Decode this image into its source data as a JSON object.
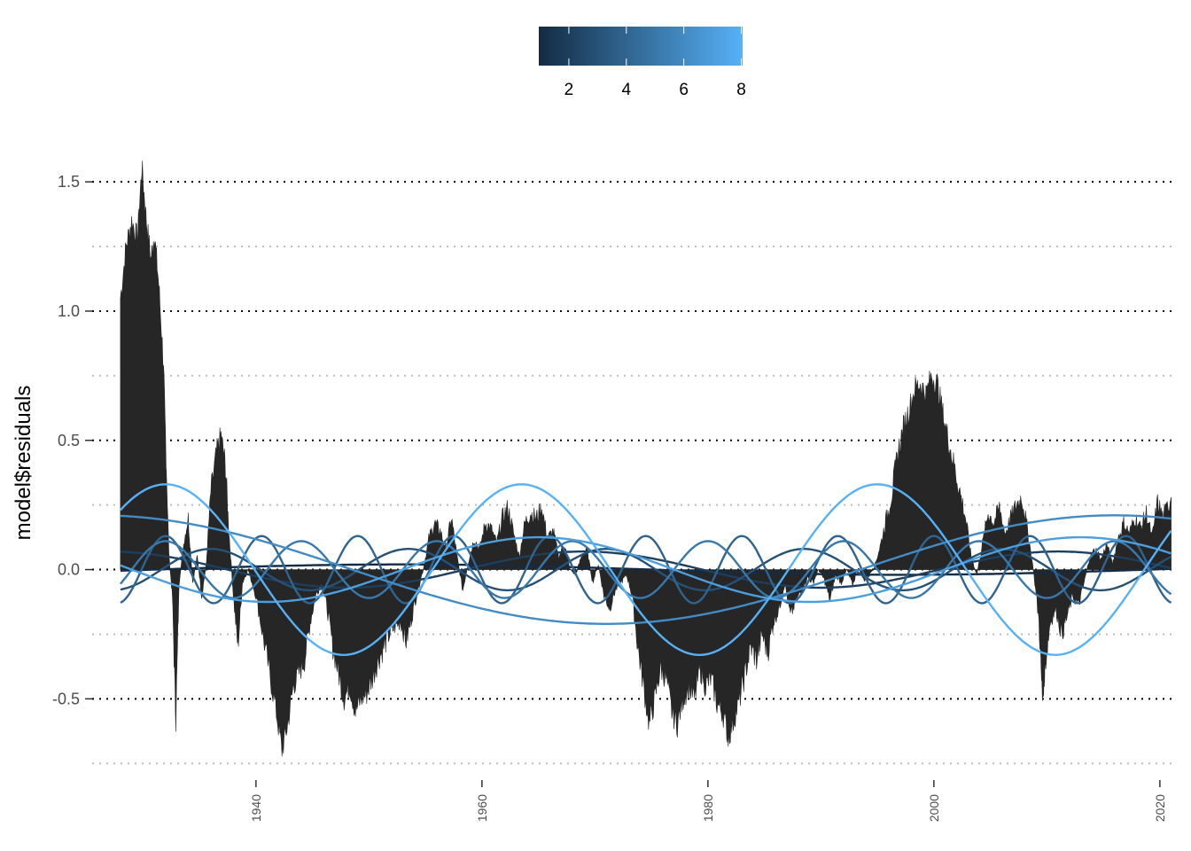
{
  "chart_data": {
    "type": "area",
    "ylabel": "model$residuals",
    "xlabel": "",
    "xlim": [
      1925.5,
      2021.5
    ],
    "ylim": [
      -0.78,
      1.6
    ],
    "x_ticks": [
      1940,
      1960,
      1980,
      2000,
      2020
    ],
    "y_ticks": [
      -0.5,
      0.0,
      0.5,
      1.0,
      1.5
    ],
    "y_minor_gridlines": [
      -0.75,
      -0.25,
      0.25,
      0.75,
      1.25
    ],
    "grid": true,
    "gridline_style": "dotted",
    "legend": {
      "position": "top",
      "type": "colorbar",
      "min": 1,
      "max": 8,
      "ticks": [
        2,
        4,
        6,
        8
      ],
      "color_low": "#132B43",
      "color_high": "#56B1F7"
    },
    "residuals_area": {
      "color": "#262626",
      "points": [
        [
          1928.0,
          1.05
        ],
        [
          1928.5,
          1.25
        ],
        [
          1929.0,
          1.35
        ],
        [
          1929.5,
          1.28
        ],
        [
          1929.9,
          1.56
        ],
        [
          1930.3,
          1.35
        ],
        [
          1930.7,
          1.2
        ],
        [
          1931.0,
          1.3
        ],
        [
          1931.4,
          1.1
        ],
        [
          1931.8,
          0.8
        ],
        [
          1932.0,
          0.5
        ],
        [
          1932.3,
          0.05
        ],
        [
          1932.6,
          -0.1
        ],
        [
          1932.9,
          -0.58
        ],
        [
          1933.2,
          -0.05
        ],
        [
          1933.6,
          0.1
        ],
        [
          1934.0,
          0.2
        ],
        [
          1934.4,
          -0.05
        ],
        [
          1934.8,
          0.05
        ],
        [
          1935.2,
          -0.1
        ],
        [
          1935.6,
          0.02
        ],
        [
          1936.0,
          0.3
        ],
        [
          1936.5,
          0.45
        ],
        [
          1936.9,
          0.52
        ],
        [
          1937.3,
          0.4
        ],
        [
          1937.6,
          0.15
        ],
        [
          1938.0,
          -0.1
        ],
        [
          1938.4,
          -0.3
        ],
        [
          1938.8,
          -0.05
        ],
        [
          1939.3,
          0.0
        ],
        [
          1940.0,
          -0.1
        ],
        [
          1940.6,
          -0.25
        ],
        [
          1941.2,
          -0.4
        ],
        [
          1941.8,
          -0.55
        ],
        [
          1942.3,
          -0.7
        ],
        [
          1942.8,
          -0.6
        ],
        [
          1943.3,
          -0.45
        ],
        [
          1943.8,
          -0.4
        ],
        [
          1944.3,
          -0.35
        ],
        [
          1944.8,
          -0.2
        ],
        [
          1945.3,
          -0.1
        ],
        [
          1945.8,
          -0.05
        ],
        [
          1946.3,
          -0.15
        ],
        [
          1946.8,
          -0.3
        ],
        [
          1947.3,
          -0.4
        ],
        [
          1947.8,
          -0.5
        ],
        [
          1948.3,
          -0.45
        ],
        [
          1948.8,
          -0.55
        ],
        [
          1949.3,
          -0.5
        ],
        [
          1949.8,
          -0.48
        ],
        [
          1950.3,
          -0.42
        ],
        [
          1950.8,
          -0.35
        ],
        [
          1951.3,
          -0.3
        ],
        [
          1951.8,
          -0.25
        ],
        [
          1952.3,
          -0.22
        ],
        [
          1952.8,
          -0.2
        ],
        [
          1953.3,
          -0.28
        ],
        [
          1953.8,
          -0.18
        ],
        [
          1954.3,
          -0.08
        ],
        [
          1954.8,
          0.0
        ],
        [
          1955.3,
          0.12
        ],
        [
          1955.8,
          0.18
        ],
        [
          1956.3,
          0.15
        ],
        [
          1956.8,
          0.08
        ],
        [
          1957.3,
          0.2
        ],
        [
          1957.8,
          0.05
        ],
        [
          1958.3,
          -0.08
        ],
        [
          1958.8,
          0.03
        ],
        [
          1959.3,
          0.12
        ],
        [
          1959.8,
          0.08
        ],
        [
          1960.3,
          0.18
        ],
        [
          1960.8,
          0.16
        ],
        [
          1961.3,
          0.1
        ],
        [
          1961.8,
          0.2
        ],
        [
          1962.3,
          0.24
        ],
        [
          1962.8,
          0.14
        ],
        [
          1963.3,
          0.05
        ],
        [
          1963.8,
          0.18
        ],
        [
          1964.3,
          0.22
        ],
        [
          1964.8,
          0.2
        ],
        [
          1965.3,
          0.24
        ],
        [
          1965.8,
          0.12
        ],
        [
          1966.3,
          0.15
        ],
        [
          1966.8,
          0.05
        ],
        [
          1967.3,
          0.1
        ],
        [
          1967.8,
          0.0
        ],
        [
          1968.3,
          -0.02
        ],
        [
          1968.8,
          0.05
        ],
        [
          1969.3,
          0.08
        ],
        [
          1969.8,
          -0.05
        ],
        [
          1970.3,
          0.02
        ],
        [
          1970.8,
          -0.1
        ],
        [
          1971.3,
          -0.15
        ],
        [
          1971.8,
          -0.08
        ],
        [
          1972.3,
          -0.05
        ],
        [
          1972.8,
          -0.02
        ],
        [
          1973.3,
          -0.1
        ],
        [
          1973.8,
          -0.3
        ],
        [
          1974.3,
          -0.45
        ],
        [
          1974.8,
          -0.6
        ],
        [
          1975.3,
          -0.5
        ],
        [
          1975.8,
          -0.38
        ],
        [
          1976.3,
          -0.42
        ],
        [
          1976.8,
          -0.55
        ],
        [
          1977.3,
          -0.6
        ],
        [
          1977.8,
          -0.5
        ],
        [
          1978.3,
          -0.45
        ],
        [
          1978.8,
          -0.5
        ],
        [
          1979.3,
          -0.38
        ],
        [
          1979.8,
          -0.45
        ],
        [
          1980.3,
          -0.42
        ],
        [
          1980.8,
          -0.52
        ],
        [
          1981.3,
          -0.55
        ],
        [
          1981.8,
          -0.65
        ],
        [
          1982.3,
          -0.58
        ],
        [
          1982.8,
          -0.5
        ],
        [
          1983.3,
          -0.4
        ],
        [
          1983.8,
          -0.3
        ],
        [
          1984.3,
          -0.35
        ],
        [
          1984.8,
          -0.25
        ],
        [
          1985.3,
          -0.32
        ],
        [
          1985.8,
          -0.2
        ],
        [
          1986.3,
          -0.15
        ],
        [
          1986.8,
          -0.05
        ],
        [
          1987.3,
          -0.18
        ],
        [
          1987.8,
          -0.12
        ],
        [
          1988.3,
          -0.08
        ],
        [
          1988.8,
          -0.03
        ],
        [
          1989.3,
          -0.05
        ],
        [
          1989.8,
          0.0
        ],
        [
          1990.3,
          -0.04
        ],
        [
          1990.8,
          -0.12
        ],
        [
          1991.3,
          -0.02
        ],
        [
          1991.8,
          -0.05
        ],
        [
          1992.3,
          0.0
        ],
        [
          1992.8,
          -0.06
        ],
        [
          1993.3,
          0.01
        ],
        [
          1993.8,
          -0.04
        ],
        [
          1994.3,
          -0.02
        ],
        [
          1994.8,
          0.02
        ],
        [
          1995.3,
          0.1
        ],
        [
          1995.8,
          0.2
        ],
        [
          1996.3,
          0.3
        ],
        [
          1996.8,
          0.45
        ],
        [
          1997.3,
          0.55
        ],
        [
          1997.8,
          0.62
        ],
        [
          1998.3,
          0.7
        ],
        [
          1998.8,
          0.72
        ],
        [
          1999.3,
          0.68
        ],
        [
          1999.8,
          0.75
        ],
        [
          2000.3,
          0.72
        ],
        [
          2000.8,
          0.6
        ],
        [
          2001.3,
          0.5
        ],
        [
          2001.8,
          0.4
        ],
        [
          2002.3,
          0.3
        ],
        [
          2002.8,
          0.2
        ],
        [
          2003.3,
          0.05
        ],
        [
          2003.8,
          -0.02
        ],
        [
          2004.3,
          0.1
        ],
        [
          2004.8,
          0.22
        ],
        [
          2005.3,
          0.18
        ],
        [
          2005.8,
          0.24
        ],
        [
          2006.3,
          0.14
        ],
        [
          2006.8,
          0.2
        ],
        [
          2007.3,
          0.25
        ],
        [
          2007.8,
          0.28
        ],
        [
          2008.3,
          0.15
        ],
        [
          2008.8,
          0.0
        ],
        [
          2009.3,
          -0.2
        ],
        [
          2009.6,
          -0.5
        ],
        [
          2009.9,
          -0.35
        ],
        [
          2010.3,
          -0.2
        ],
        [
          2010.8,
          -0.15
        ],
        [
          2011.3,
          -0.25
        ],
        [
          2011.8,
          -0.18
        ],
        [
          2012.3,
          -0.1
        ],
        [
          2012.8,
          -0.14
        ],
        [
          2013.3,
          -0.05
        ],
        [
          2013.8,
          0.05
        ],
        [
          2014.3,
          0.08
        ],
        [
          2014.8,
          0.04
        ],
        [
          2015.3,
          0.1
        ],
        [
          2015.8,
          0.02
        ],
        [
          2016.3,
          0.12
        ],
        [
          2016.8,
          0.18
        ],
        [
          2017.3,
          0.14
        ],
        [
          2017.8,
          0.2
        ],
        [
          2018.3,
          0.16
        ],
        [
          2018.8,
          0.22
        ],
        [
          2019.3,
          0.12
        ],
        [
          2019.8,
          0.26
        ],
        [
          2020.3,
          0.2
        ],
        [
          2021.0,
          0.28
        ]
      ]
    },
    "harmonic_series": [
      {
        "color_value": 1,
        "amplitude": 0.02,
        "period": 88.0,
        "phase_year": 1953.0
      },
      {
        "color_value": 2,
        "amplitude": 0.07,
        "period": 42.0,
        "phase_year": 1969.0
      },
      {
        "color_value": 3,
        "amplitude": 0.08,
        "period": 17.5,
        "phase_year": 1936.0
      },
      {
        "color_value": 4,
        "amplitude": 0.13,
        "period": 8.5,
        "phase_year": 1932.0
      },
      {
        "color_value": 5,
        "amplitude": 0.11,
        "period": 12.0,
        "phase_year": 1944.0
      },
      {
        "color_value": 6,
        "amplitude": 0.21,
        "period": 90.0,
        "phase_year": 2016.0
      },
      {
        "color_value": 7,
        "amplitude": 0.125,
        "period": 48.0,
        "phase_year": 1965.0
      },
      {
        "color_value": 8,
        "amplitude": 0.33,
        "period": 31.5,
        "phase_year": 1932.0
      }
    ]
  }
}
